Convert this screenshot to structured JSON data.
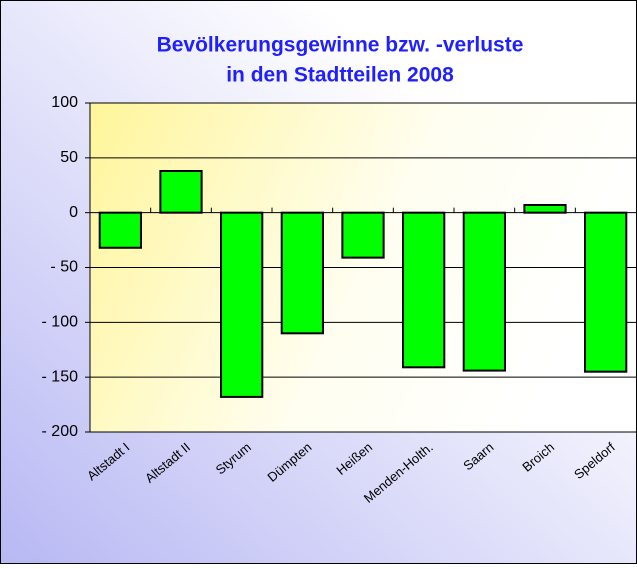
{
  "chart_data": {
    "type": "bar",
    "title": [
      "Bevölkerungsgewinne bzw. -verluste",
      "in den Stadtteilen 2008"
    ],
    "categories": [
      "Altstadt I",
      "Altstadt II",
      "Styrum",
      "Dümpten",
      "Heißen",
      "Menden-Holth.",
      "Saarn",
      "Broich",
      "Speldorf"
    ],
    "values": [
      -32,
      38,
      -168,
      -110,
      -41,
      -141,
      -144,
      7,
      -145
    ],
    "color": "#00ff00",
    "ylim": [
      -200,
      100
    ],
    "yticks": [
      100,
      50,
      0,
      {
        "value": -50,
        "label": "- 50"
      },
      {
        "value": -100,
        "label": "- 100"
      },
      {
        "value": -150,
        "label": "- 150"
      },
      {
        "value": -200,
        "label": "- 200"
      }
    ],
    "grid": true
  }
}
